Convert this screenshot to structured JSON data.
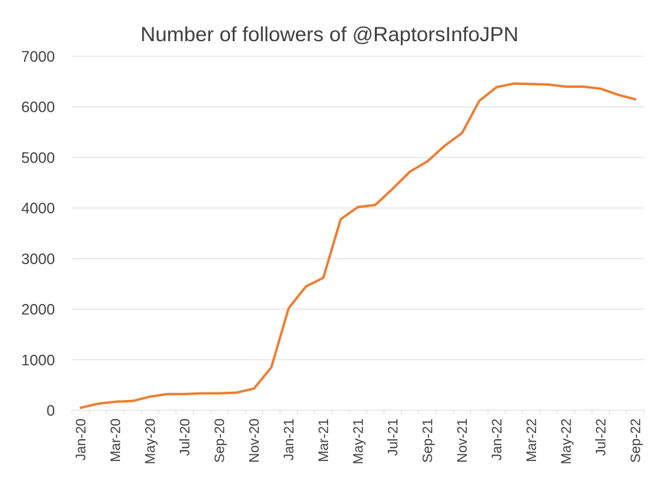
{
  "chart_data": {
    "type": "line",
    "title": "Number of followers of @RaptorsInfoJPN",
    "xlabel": "",
    "ylabel": "",
    "ylim": [
      0,
      7000
    ],
    "yticks": [
      "0",
      "1000",
      "2000",
      "3000",
      "4000",
      "5000",
      "6000",
      "7000"
    ],
    "grid": true,
    "legend": "none",
    "categories": [
      "Jan-20",
      "Feb-20",
      "Mar-20",
      "Apr-20",
      "May-20",
      "Jun-20",
      "Jul-20",
      "Aug-20",
      "Sep-20",
      "Oct-20",
      "Nov-20",
      "Dec-20",
      "Jan-21",
      "Feb-21",
      "Mar-21",
      "Apr-21",
      "May-21",
      "Jun-21",
      "Jul-21",
      "Aug-21",
      "Sep-21",
      "Oct-21",
      "Nov-21",
      "Dec-21",
      "Jan-22",
      "Feb-22",
      "Mar-22",
      "Apr-22",
      "May-22",
      "Jun-22",
      "Jul-22",
      "Aug-22",
      "Sep-22"
    ],
    "xtick_labels": [
      "Jan-20",
      "Mar-20",
      "May-20",
      "Jul-20",
      "Sep-20",
      "Nov-20",
      "Jan-21",
      "Mar-21",
      "May-21",
      "Jul-21",
      "Sep-21",
      "Nov-21",
      "Jan-22",
      "Mar-22",
      "May-22",
      "Jul-22",
      "Sep-22"
    ],
    "series": [
      {
        "name": "Followers",
        "color": "#ED7D31",
        "values": [
          50,
          130,
          170,
          185,
          270,
          320,
          320,
          335,
          335,
          350,
          430,
          850,
          2020,
          2450,
          2620,
          3780,
          4020,
          4060,
          4380,
          4720,
          4920,
          5230,
          5480,
          6120,
          6390,
          6460,
          6450,
          6440,
          6400,
          6400,
          6360,
          6240,
          6150
        ]
      }
    ]
  }
}
